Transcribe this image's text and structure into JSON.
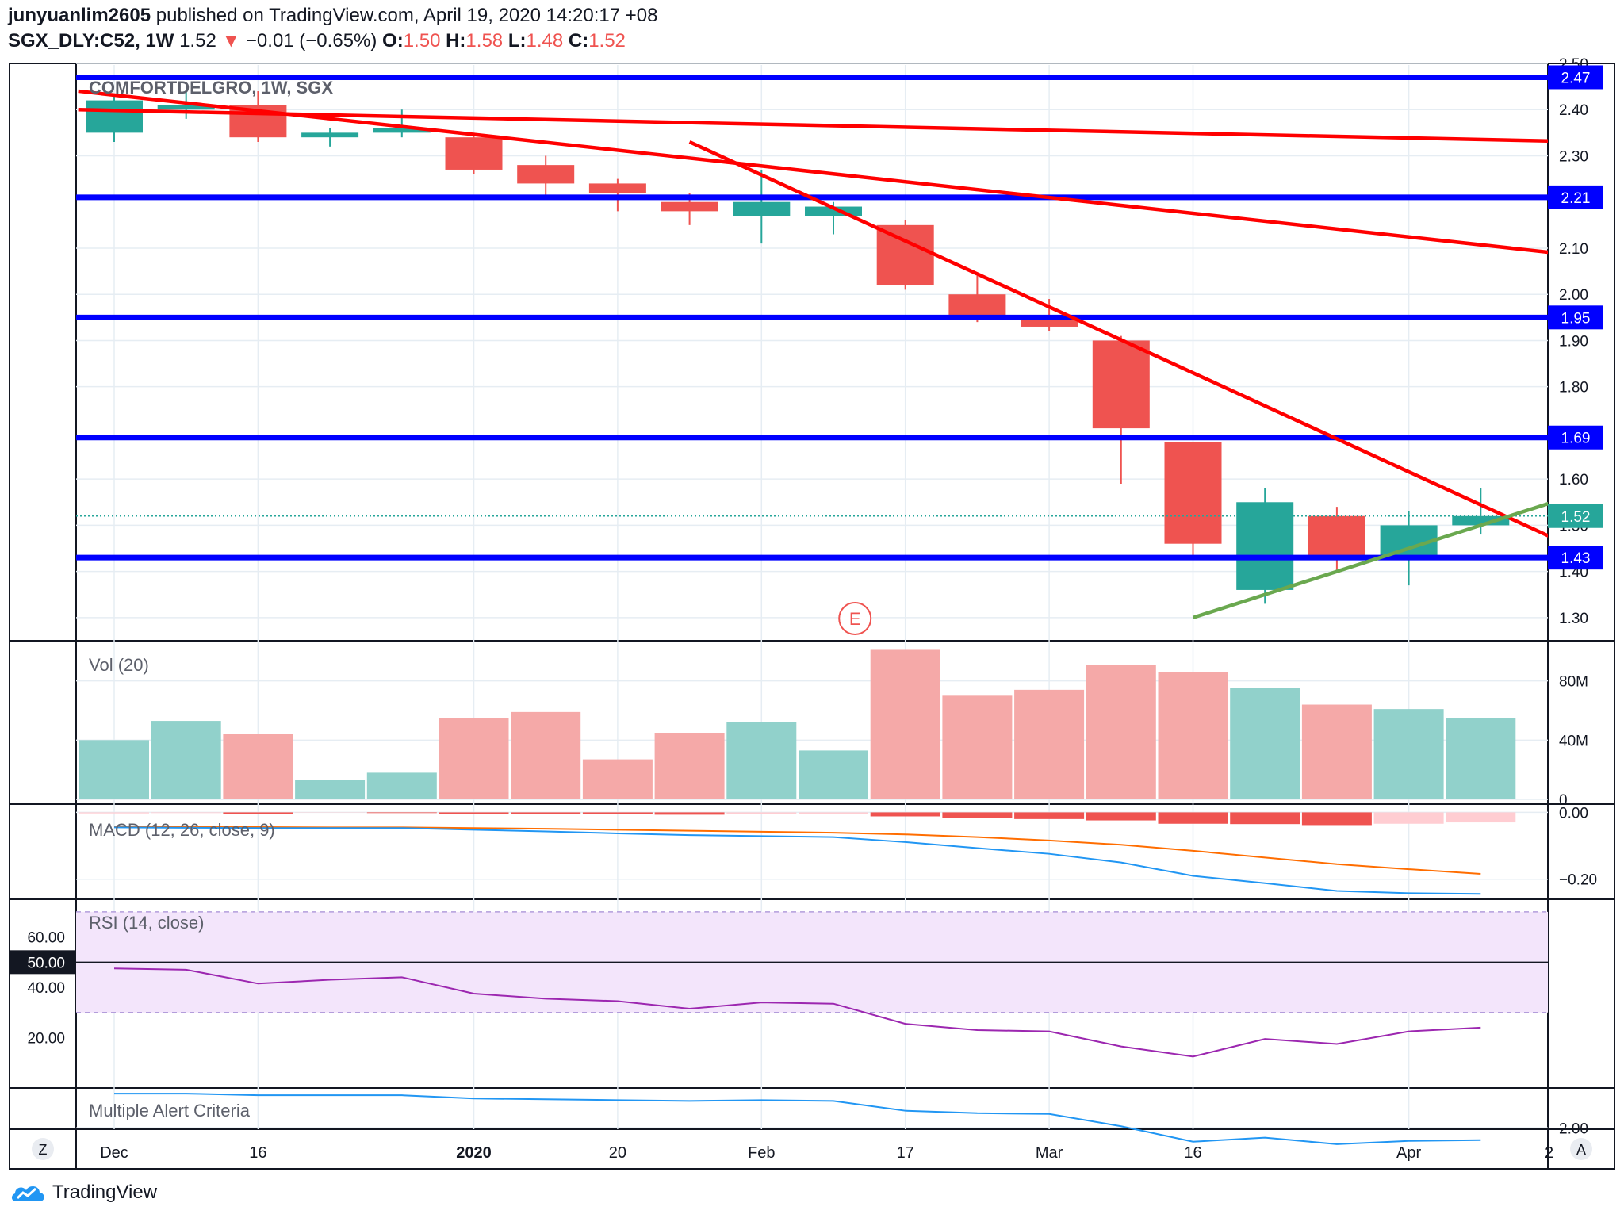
{
  "header": {
    "author": "junyuanlim2605",
    "published_text": "published on TradingView.com, April 19, 2020 14:20:17 +08",
    "symbol_line": "SGX_DLY:C52, 1W",
    "last_price": "1.52",
    "change_arrow": "▼",
    "change": "−0.01 (−0.65%)",
    "ohlc": [
      {
        "label": "O:",
        "value": "1.50"
      },
      {
        "label": "H:",
        "value": "1.58"
      },
      {
        "label": "L:",
        "value": "1.48"
      },
      {
        "label": "C:",
        "value": "1.52"
      }
    ]
  },
  "footer": {
    "brand": "TradingView",
    "btn_left": "Z",
    "btn_right": "A"
  },
  "colors": {
    "up": "#26a69a",
    "down": "#ef5350",
    "vol_up": "#91d1cb",
    "vol_down": "#f5a9a8",
    "level": "#0000ff",
    "trend_red": "#ff0000",
    "trend_green": "#6aa84f",
    "macd": "#2196f3",
    "signal": "#ff6d00",
    "rsi": "#9c27b0",
    "rsi_band": "#f3e5fb",
    "alert": "#2196f3",
    "grid": "#e6edf3"
  },
  "chart_data": [
    {
      "type": "candlestick",
      "title": "COMFORTDELGRO, 1W, SGX",
      "x_labels": [
        "Dec",
        "16",
        "2020",
        "20",
        "Feb",
        "17",
        "Mar",
        "16",
        "Apr",
        "2"
      ],
      "x_label_bars": [
        0,
        2,
        5,
        7,
        9,
        11,
        13,
        15,
        18,
        20
      ],
      "ylim": [
        1.25,
        2.5
      ],
      "y_ticks": [
        "2.50",
        "2.40",
        "2.30",
        "2.10",
        "2.00",
        "1.90",
        "1.80",
        "1.60",
        "1.50",
        "1.40",
        "1.30"
      ],
      "candles": [
        {
          "o": 2.35,
          "h": 2.43,
          "l": 2.33,
          "c": 2.42
        },
        {
          "o": 2.4,
          "h": 2.44,
          "l": 2.38,
          "c": 2.41
        },
        {
          "o": 2.41,
          "h": 2.44,
          "l": 2.33,
          "c": 2.34
        },
        {
          "o": 2.34,
          "h": 2.36,
          "l": 2.32,
          "c": 2.35
        },
        {
          "o": 2.35,
          "h": 2.4,
          "l": 2.34,
          "c": 2.36
        },
        {
          "o": 2.34,
          "h": 2.35,
          "l": 2.26,
          "c": 2.27
        },
        {
          "o": 2.28,
          "h": 2.3,
          "l": 2.21,
          "c": 2.24
        },
        {
          "o": 2.24,
          "h": 2.25,
          "l": 2.18,
          "c": 2.22
        },
        {
          "o": 2.2,
          "h": 2.22,
          "l": 2.15,
          "c": 2.18
        },
        {
          "o": 2.17,
          "h": 2.27,
          "l": 2.11,
          "c": 2.2
        },
        {
          "o": 2.17,
          "h": 2.2,
          "l": 2.13,
          "c": 2.19
        },
        {
          "o": 2.15,
          "h": 2.16,
          "l": 2.01,
          "c": 2.02
        },
        {
          "o": 2.0,
          "h": 2.04,
          "l": 1.94,
          "c": 1.95
        },
        {
          "o": 1.95,
          "h": 1.99,
          "l": 1.92,
          "c": 1.93
        },
        {
          "o": 1.9,
          "h": 1.91,
          "l": 1.59,
          "c": 1.71
        },
        {
          "o": 1.68,
          "h": 1.68,
          "l": 1.43,
          "c": 1.46
        },
        {
          "o": 1.36,
          "h": 1.58,
          "l": 1.33,
          "c": 1.55
        },
        {
          "o": 1.52,
          "h": 1.54,
          "l": 1.4,
          "c": 1.43
        },
        {
          "o": 1.43,
          "h": 1.53,
          "l": 1.37,
          "c": 1.5
        },
        {
          "o": 1.5,
          "h": 1.58,
          "l": 1.48,
          "c": 1.52
        }
      ],
      "horizontal_levels": [
        "2.47",
        "2.21",
        "1.95",
        "1.69",
        "1.43"
      ],
      "last_price_label": "1.52",
      "last_price": 1.52,
      "trendlines": [
        {
          "color": "red",
          "from": [
            -0.5,
            2.4
          ],
          "to": [
            20.6,
            2.33
          ]
        },
        {
          "color": "red",
          "from": [
            -0.5,
            2.44
          ],
          "to": [
            20.6,
            2.08
          ]
        },
        {
          "color": "red",
          "from": [
            8.0,
            2.33
          ],
          "to": [
            20.6,
            1.43
          ]
        },
        {
          "color": "green",
          "from": [
            15.0,
            1.3
          ],
          "to": [
            20.6,
            1.58
          ]
        }
      ],
      "event_marker": {
        "label": "E",
        "bar": 10.3
      }
    },
    {
      "type": "bar",
      "title": "Vol (20)",
      "ylim": [
        0,
        105
      ],
      "y_ticks": [
        "80M",
        "40M",
        "0"
      ],
      "values": [
        40,
        53,
        44,
        13,
        18,
        55,
        59,
        27,
        45,
        52,
        33,
        101,
        70,
        74,
        91,
        86,
        75,
        64,
        61,
        55
      ],
      "units": "M"
    },
    {
      "type": "line",
      "title": "MACD (12, 26, close, 9)",
      "ylim": [
        -0.26,
        0.02
      ],
      "y_ticks": [
        "0.00",
        "−0.20"
      ],
      "histogram": [
        -0.003,
        -0.002,
        -0.004,
        -0.001,
        -0.002,
        -0.004,
        -0.005,
        -0.006,
        -0.007,
        -0.004,
        -0.004,
        -0.012,
        -0.016,
        -0.02,
        -0.024,
        -0.034,
        -0.035,
        -0.038,
        -0.034,
        -0.03
      ],
      "macd": [
        -0.045,
        -0.046,
        -0.047,
        -0.047,
        -0.047,
        -0.052,
        -0.057,
        -0.063,
        -0.068,
        -0.071,
        -0.074,
        -0.089,
        -0.107,
        -0.124,
        -0.15,
        -0.19,
        -0.212,
        -0.235,
        -0.242,
        -0.244
      ],
      "signal": [
        -0.042,
        -0.043,
        -0.044,
        -0.045,
        -0.045,
        -0.047,
        -0.049,
        -0.052,
        -0.055,
        -0.058,
        -0.061,
        -0.066,
        -0.074,
        -0.084,
        -0.097,
        -0.115,
        -0.135,
        -0.155,
        -0.17,
        -0.184
      ]
    },
    {
      "type": "line",
      "title": "RSI (14, close)",
      "ylim": [
        0,
        75
      ],
      "y_ticks": [
        "60.00",
        "40.00",
        "20.00"
      ],
      "mid_label": "50.00",
      "band": [
        30,
        70
      ],
      "values": [
        47.5,
        47,
        41.5,
        43,
        44,
        37.5,
        35.5,
        34.5,
        31.5,
        34,
        33.5,
        25.5,
        23,
        22.5,
        16.5,
        12.5,
        19.5,
        17.5,
        22.5,
        24
      ]
    },
    {
      "type": "line",
      "title": "Multiple Alert Criteria",
      "ylim": [
        1.4,
        2.45
      ],
      "y_ticks": [
        "2.00"
      ],
      "values": [
        2.42,
        2.42,
        2.4,
        2.4,
        2.4,
        2.36,
        2.35,
        2.34,
        2.33,
        2.34,
        2.33,
        2.21,
        2.18,
        2.17,
        2.02,
        1.83,
        1.88,
        1.8,
        1.84,
        1.85
      ]
    }
  ]
}
